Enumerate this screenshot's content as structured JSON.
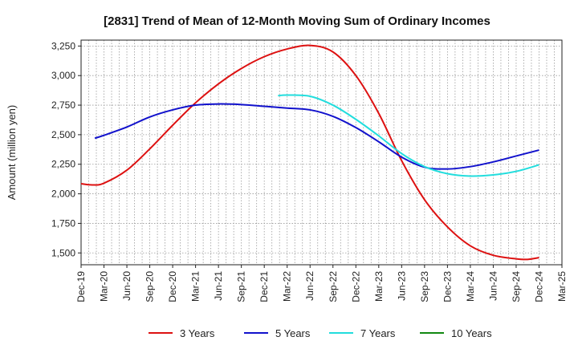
{
  "chart_data": {
    "type": "line",
    "title": "[2831]  Trend of Mean of 12-Month Moving Sum of Ordinary Incomes",
    "xlabel": "",
    "ylabel": "Amount (million yen)",
    "ylim": [
      1400,
      3300
    ],
    "yticks": [
      1500,
      1750,
      2000,
      2250,
      2500,
      2750,
      3000,
      3250
    ],
    "ytick_labels": [
      "1,500",
      "1,750",
      "2,000",
      "2,250",
      "2,500",
      "2,750",
      "3,000",
      "3,250"
    ],
    "x_tick_labels": [
      "Dec-19",
      "Mar-20",
      "Jun-20",
      "Sep-20",
      "Dec-20",
      "Mar-21",
      "Jun-21",
      "Sep-21",
      "Dec-21",
      "Mar-22",
      "Jun-22",
      "Sep-22",
      "Dec-22",
      "Mar-23",
      "Jun-23",
      "Sep-23",
      "Dec-23",
      "Mar-24",
      "Jun-24",
      "Sep-24",
      "Dec-24",
      "Mar-25"
    ],
    "grid": true,
    "legend_position": "bottom",
    "series": [
      {
        "name": "3 Years",
        "color": "#dd1111",
        "points": [
          [
            0,
            2085
          ],
          [
            0.5,
            2075
          ],
          [
            1,
            2090
          ],
          [
            2,
            2200
          ],
          [
            3,
            2380
          ],
          [
            4,
            2580
          ],
          [
            5,
            2770
          ],
          [
            6,
            2930
          ],
          [
            7,
            3060
          ],
          [
            8,
            3160
          ],
          [
            9,
            3225
          ],
          [
            10,
            3255
          ],
          [
            11,
            3200
          ],
          [
            12,
            3000
          ],
          [
            13,
            2680
          ],
          [
            14,
            2280
          ],
          [
            15,
            1950
          ],
          [
            16,
            1720
          ],
          [
            17,
            1560
          ],
          [
            18,
            1480
          ],
          [
            19,
            1450
          ],
          [
            19.5,
            1445
          ],
          [
            20,
            1460
          ]
        ]
      },
      {
        "name": "5 Years",
        "color": "#1111cc",
        "points": [
          [
            0.6,
            2470
          ],
          [
            1,
            2495
          ],
          [
            2,
            2565
          ],
          [
            3,
            2650
          ],
          [
            4,
            2710
          ],
          [
            5,
            2750
          ],
          [
            6,
            2760
          ],
          [
            7,
            2755
          ],
          [
            8,
            2740
          ],
          [
            9,
            2725
          ],
          [
            10,
            2710
          ],
          [
            11,
            2655
          ],
          [
            12,
            2560
          ],
          [
            13,
            2440
          ],
          [
            14,
            2310
          ],
          [
            15,
            2225
          ],
          [
            16,
            2210
          ],
          [
            17,
            2230
          ],
          [
            18,
            2270
          ],
          [
            19,
            2320
          ],
          [
            20,
            2370
          ]
        ]
      },
      {
        "name": "7 Years",
        "color": "#22dddd",
        "points": [
          [
            8.6,
            2830
          ],
          [
            9,
            2835
          ],
          [
            10,
            2825
          ],
          [
            11,
            2750
          ],
          [
            12,
            2630
          ],
          [
            13,
            2490
          ],
          [
            14,
            2340
          ],
          [
            15,
            2230
          ],
          [
            16,
            2170
          ],
          [
            17,
            2150
          ],
          [
            18,
            2160
          ],
          [
            19,
            2190
          ],
          [
            20,
            2245
          ]
        ]
      },
      {
        "name": "10 Years",
        "color": "#118811",
        "points": []
      }
    ]
  }
}
